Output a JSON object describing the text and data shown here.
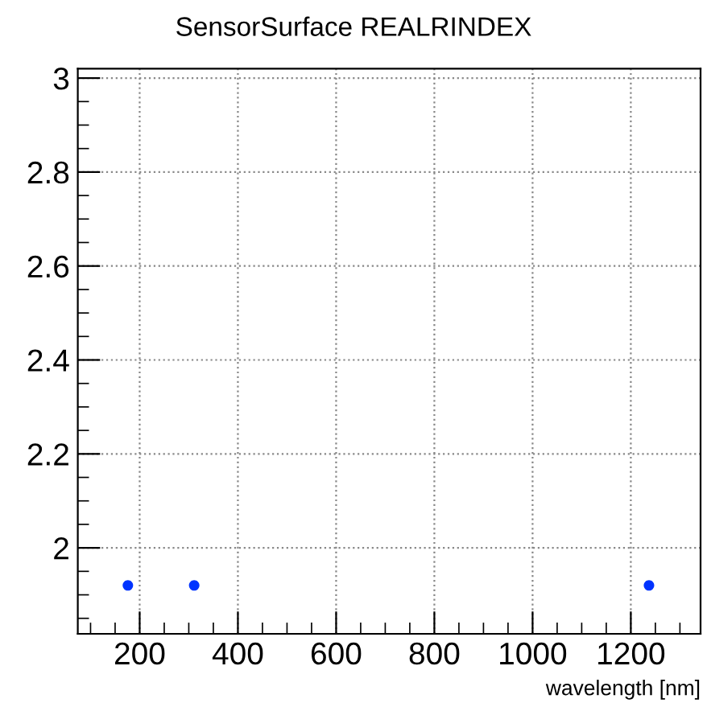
{
  "chart_data": {
    "type": "scatter",
    "title": "SensorSurface REALRINDEX",
    "xlabel": "wavelength [nm]",
    "x": [
      176,
      311,
      1237
    ],
    "series": [
      {
        "color": "#0033ff",
        "values": [
          1.92,
          1.92,
          1.92
        ]
      }
    ],
    "xlim": [
      74,
      1342
    ],
    "ylim": [
      1.817,
      3.02
    ],
    "xticks": [
      {
        "value": 100,
        "label": null
      },
      {
        "value": 150,
        "label": null
      },
      200,
      {
        "value": 250,
        "label": null
      },
      {
        "value": 300,
        "label": null
      },
      {
        "value": 350,
        "label": null
      },
      400,
      {
        "value": 450,
        "label": null
      },
      {
        "value": 500,
        "label": null
      },
      {
        "value": 550,
        "label": null
      },
      600,
      {
        "value": 650,
        "label": null
      },
      {
        "value": 700,
        "label": null
      },
      {
        "value": 750,
        "label": null
      },
      800,
      {
        "value": 850,
        "label": null
      },
      {
        "value": 900,
        "label": null
      },
      {
        "value": 950,
        "label": null
      },
      1000,
      {
        "value": 1050,
        "label": null
      },
      {
        "value": 1100,
        "label": null
      },
      {
        "value": 1150,
        "label": null
      },
      1200,
      {
        "value": 1250,
        "label": null
      },
      {
        "value": 1300,
        "label": null
      }
    ],
    "yticks": [
      {
        "value": 1.85,
        "label": null
      },
      {
        "value": 1.9,
        "label": null
      },
      {
        "value": 1.95,
        "label": null
      },
      2,
      {
        "value": 2.05,
        "label": null
      },
      {
        "value": 2.1,
        "label": null
      },
      {
        "value": 2.15,
        "label": null
      },
      2.2,
      {
        "value": 2.25,
        "label": null
      },
      {
        "value": 2.3,
        "label": null
      },
      {
        "value": 2.35,
        "label": null
      },
      2.4,
      {
        "value": 2.45,
        "label": null
      },
      {
        "value": 2.5,
        "label": null
      },
      {
        "value": 2.55,
        "label": null
      },
      2.6,
      {
        "value": 2.65,
        "label": null
      },
      {
        "value": 2.7,
        "label": null
      },
      {
        "value": 2.75,
        "label": null
      },
      2.8,
      {
        "value": 2.85,
        "label": null
      },
      {
        "value": 2.9,
        "label": null
      },
      {
        "value": 2.95,
        "label": null
      },
      3
    ],
    "grid": true,
    "marker": "circle"
  }
}
